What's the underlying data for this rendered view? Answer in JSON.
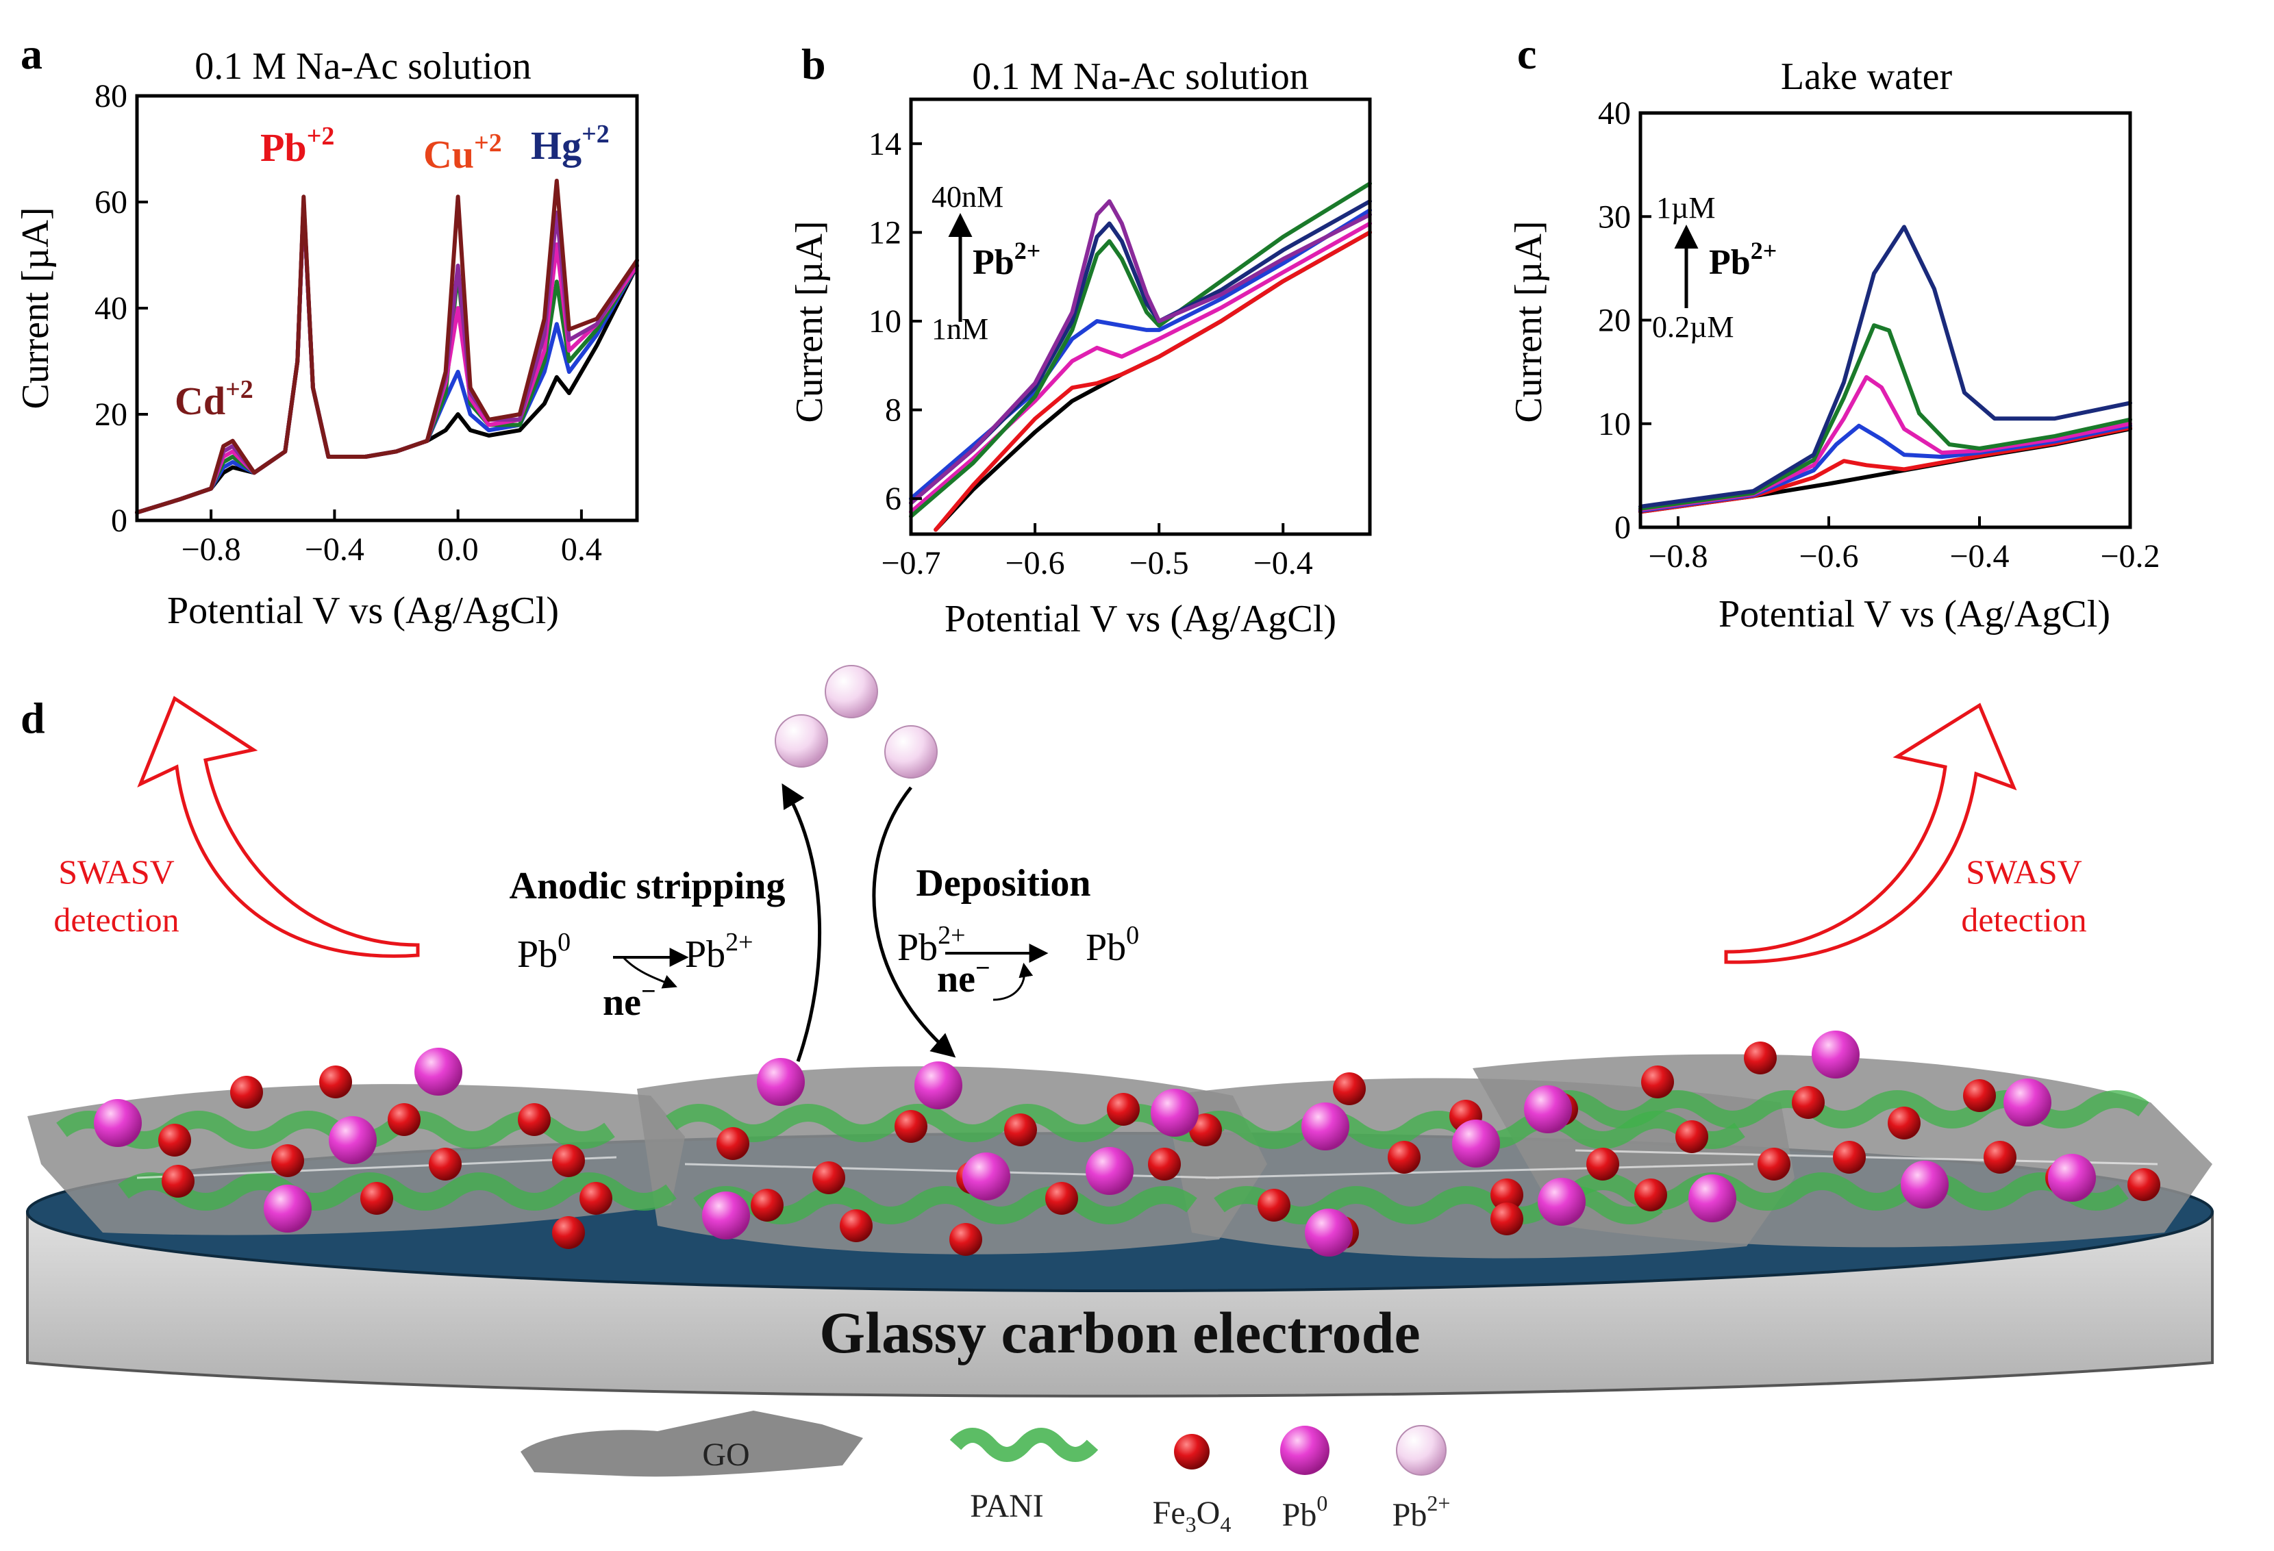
{
  "chart_data": [
    {
      "panel": "a",
      "type": "line",
      "title": "0.1 M Na-Ac solution",
      "xlabel": "Potential V vs (Ag/AgCl)",
      "ylabel": "Current [µA]",
      "xlim": [
        -1.04,
        0.58
      ],
      "ylim": [
        0,
        80
      ],
      "xticks": [
        -0.8,
        -0.4,
        0.0,
        0.4
      ],
      "xtick_labels": [
        "−0.8",
        "−0.4",
        "0.0",
        "0.4"
      ],
      "yticks": [
        0,
        20,
        40,
        60,
        80
      ],
      "ytick_labels": [
        "0",
        "20",
        "40",
        "60",
        "80"
      ],
      "annotations": [
        {
          "ion": "Cd",
          "charge": "+2",
          "color": "#7b1a1a"
        },
        {
          "ion": "Pb",
          "charge": "+2",
          "color": "#e8141a"
        },
        {
          "ion": "Cu",
          "charge": "+2",
          "color": "#e8441a"
        },
        {
          "ion": "Hg",
          "charge": "+2",
          "color": "#1a2a7b"
        }
      ],
      "series": [
        {
          "color": "#000000",
          "x": [
            -1.04,
            -0.9,
            -0.8,
            -0.76,
            -0.73,
            -0.66,
            -0.56,
            -0.52,
            -0.5,
            -0.47,
            -0.42,
            -0.3,
            -0.2,
            -0.1,
            -0.04,
            0.0,
            0.04,
            0.1,
            0.2,
            0.28,
            0.32,
            0.36,
            0.45,
            0.58
          ],
          "y": [
            1.5,
            4,
            6,
            9,
            10,
            9,
            13,
            30,
            60,
            25,
            12,
            12,
            13,
            15,
            17,
            20,
            17,
            16,
            17,
            22,
            27,
            24,
            33,
            48
          ]
        },
        {
          "color": "#1f3fd6",
          "x": [
            -1.04,
            -0.9,
            -0.8,
            -0.76,
            -0.73,
            -0.66,
            -0.56,
            -0.52,
            -0.5,
            -0.47,
            -0.42,
            -0.3,
            -0.2,
            -0.1,
            -0.04,
            0.0,
            0.04,
            0.1,
            0.2,
            0.28,
            0.32,
            0.36,
            0.45,
            0.58
          ],
          "y": [
            1.5,
            4,
            6,
            10,
            11,
            9,
            13,
            30,
            60,
            25,
            12,
            12,
            13,
            15,
            23,
            28,
            20,
            17,
            18,
            28,
            37,
            28,
            35,
            48
          ]
        },
        {
          "color": "#1a7a2a",
          "x": [
            -1.04,
            -0.9,
            -0.8,
            -0.76,
            -0.73,
            -0.66,
            -0.56,
            -0.52,
            -0.5,
            -0.47,
            -0.42,
            -0.3,
            -0.2,
            -0.1,
            -0.04,
            0.0,
            0.04,
            0.1,
            0.2,
            0.28,
            0.32,
            0.36,
            0.45,
            0.58
          ],
          "y": [
            1.5,
            4,
            6,
            11,
            12,
            9,
            13,
            30,
            60,
            25,
            12,
            12,
            13,
            15,
            24,
            47,
            22,
            18,
            18,
            30,
            45,
            30,
            36,
            48
          ]
        },
        {
          "color": "#e01fb0",
          "x": [
            -1.04,
            -0.9,
            -0.8,
            -0.76,
            -0.73,
            -0.66,
            -0.56,
            -0.52,
            -0.5,
            -0.47,
            -0.42,
            -0.3,
            -0.2,
            -0.1,
            -0.04,
            0.0,
            0.04,
            0.1,
            0.2,
            0.28,
            0.32,
            0.36,
            0.45,
            0.58
          ],
          "y": [
            1.5,
            4,
            6,
            12,
            13,
            9,
            13,
            30,
            60,
            25,
            12,
            12,
            13,
            15,
            26,
            40,
            23,
            18,
            19,
            32,
            52,
            32,
            37,
            48
          ]
        },
        {
          "color": "#8a2a9a",
          "x": [
            -1.04,
            -0.9,
            -0.8,
            -0.76,
            -0.73,
            -0.66,
            -0.56,
            -0.52,
            -0.5,
            -0.47,
            -0.42,
            -0.3,
            -0.2,
            -0.1,
            -0.04,
            0.0,
            0.04,
            0.1,
            0.2,
            0.28,
            0.32,
            0.36,
            0.45,
            0.58
          ],
          "y": [
            1.5,
            4,
            6,
            13,
            14,
            9,
            13,
            30,
            60,
            25,
            12,
            12,
            13,
            15,
            27,
            48,
            24,
            19,
            19,
            35,
            58,
            34,
            37,
            49
          ]
        },
        {
          "color": "#7b1a1a",
          "x": [
            -1.04,
            -0.9,
            -0.8,
            -0.76,
            -0.73,
            -0.66,
            -0.56,
            -0.52,
            -0.5,
            -0.47,
            -0.42,
            -0.3,
            -0.2,
            -0.1,
            -0.04,
            0.0,
            0.04,
            0.1,
            0.2,
            0.28,
            0.32,
            0.36,
            0.45,
            0.58
          ],
          "y": [
            1.5,
            4,
            6,
            14,
            15,
            9,
            13,
            30,
            61,
            25,
            12,
            12,
            13,
            15,
            28,
            61,
            25,
            19,
            20,
            38,
            64,
            36,
            38,
            49
          ]
        }
      ]
    },
    {
      "panel": "b",
      "type": "line",
      "title": "0.1 M Na-Ac solution",
      "xlabel": "Potential V vs (Ag/AgCl)",
      "ylabel": "Current [µA]",
      "xlim": [
        -0.7,
        -0.33
      ],
      "ylim": [
        5.2,
        15
      ],
      "xticks": [
        -0.7,
        -0.6,
        -0.5,
        -0.4
      ],
      "xtick_labels": [
        "−0.7",
        "−0.6",
        "−0.5",
        "−0.4"
      ],
      "yticks": [
        6,
        8,
        10,
        12,
        14
      ],
      "ytick_labels": [
        "6",
        "8",
        "10",
        "12",
        "14"
      ],
      "arrow_top": "40nM",
      "arrow_bottom": "1nM",
      "ion_label": "Pb",
      "ion_charge": "2+",
      "series": [
        {
          "color": "#000000",
          "x": [
            -0.68,
            -0.65,
            -0.6,
            -0.57,
            -0.55,
            -0.53,
            -0.5,
            -0.45,
            -0.4,
            -0.33
          ],
          "y": [
            5.3,
            6.2,
            7.5,
            8.2,
            8.5,
            8.8,
            9.2,
            10.0,
            10.9,
            12.0
          ]
        },
        {
          "color": "#e8141a",
          "x": [
            -0.68,
            -0.65,
            -0.6,
            -0.57,
            -0.55,
            -0.53,
            -0.5,
            -0.45,
            -0.4,
            -0.33
          ],
          "y": [
            5.3,
            6.3,
            7.8,
            8.5,
            8.6,
            8.8,
            9.2,
            10.0,
            10.9,
            12.0
          ]
        },
        {
          "color": "#e01fb0",
          "x": [
            -0.7,
            -0.65,
            -0.6,
            -0.57,
            -0.55,
            -0.53,
            -0.5,
            -0.45,
            -0.4,
            -0.33
          ],
          "y": [
            5.7,
            6.9,
            8.2,
            9.1,
            9.4,
            9.2,
            9.6,
            10.3,
            11.1,
            12.2
          ]
        },
        {
          "color": "#1f3fd6",
          "x": [
            -0.7,
            -0.65,
            -0.6,
            -0.57,
            -0.55,
            -0.53,
            -0.51,
            -0.5,
            -0.45,
            -0.4,
            -0.33
          ],
          "y": [
            6.0,
            7.2,
            8.4,
            9.6,
            10.0,
            9.9,
            9.8,
            9.8,
            10.5,
            11.3,
            12.5
          ]
        },
        {
          "color": "#1a7a2a",
          "x": [
            -0.7,
            -0.65,
            -0.6,
            -0.57,
            -0.55,
            -0.54,
            -0.53,
            -0.51,
            -0.5,
            -0.45,
            -0.4,
            -0.33
          ],
          "y": [
            5.6,
            6.8,
            8.3,
            9.8,
            11.5,
            11.8,
            11.4,
            10.2,
            9.9,
            10.9,
            11.9,
            13.1
          ]
        },
        {
          "color": "#1a2a7b",
          "x": [
            -0.7,
            -0.65,
            -0.6,
            -0.57,
            -0.55,
            -0.54,
            -0.53,
            -0.51,
            -0.5,
            -0.45,
            -0.4,
            -0.33
          ],
          "y": [
            5.9,
            7.1,
            8.5,
            10.0,
            11.9,
            12.2,
            11.8,
            10.4,
            10.0,
            10.7,
            11.6,
            12.7
          ]
        },
        {
          "color": "#8a2a9a",
          "x": [
            -0.7,
            -0.65,
            -0.6,
            -0.57,
            -0.55,
            -0.54,
            -0.53,
            -0.51,
            -0.5,
            -0.45,
            -0.4,
            -0.33
          ],
          "y": [
            5.9,
            7.1,
            8.6,
            10.2,
            12.4,
            12.7,
            12.2,
            10.6,
            10.0,
            10.6,
            11.4,
            12.4
          ]
        }
      ]
    },
    {
      "panel": "c",
      "type": "line",
      "title": "Lake water",
      "xlabel": "Potential V vs (Ag/AgCl)",
      "ylabel": "Current [µA]",
      "xlim": [
        -0.85,
        -0.2
      ],
      "ylim": [
        0,
        40
      ],
      "xticks": [
        -0.8,
        -0.6,
        -0.4,
        -0.2
      ],
      "xtick_labels": [
        "−0.8",
        "−0.6",
        "−0.4",
        "−0.2"
      ],
      "yticks": [
        0,
        10,
        20,
        30,
        40
      ],
      "ytick_labels": [
        "0",
        "10",
        "20",
        "30",
        "40"
      ],
      "arrow_top": "1µM",
      "arrow_bottom": "0.2µM",
      "ion_label": "Pb",
      "ion_charge": "2+",
      "series": [
        {
          "color": "#000000",
          "x": [
            -0.85,
            -0.7,
            -0.6,
            -0.5,
            -0.4,
            -0.3,
            -0.2
          ],
          "y": [
            1.5,
            3.0,
            4.2,
            5.5,
            6.8,
            8.0,
            9.5
          ]
        },
        {
          "color": "#e8141a",
          "x": [
            -0.85,
            -0.7,
            -0.62,
            -0.58,
            -0.55,
            -0.5,
            -0.4,
            -0.3,
            -0.2
          ],
          "y": [
            1.5,
            3.0,
            4.8,
            6.4,
            6.0,
            5.6,
            6.9,
            8.1,
            9.6
          ]
        },
        {
          "color": "#1f3fd6",
          "x": [
            -0.85,
            -0.7,
            -0.62,
            -0.59,
            -0.56,
            -0.53,
            -0.5,
            -0.45,
            -0.4,
            -0.3,
            -0.2
          ],
          "y": [
            1.6,
            3.1,
            5.5,
            8.0,
            9.8,
            8.5,
            7.0,
            6.8,
            7.2,
            8.3,
            9.8
          ]
        },
        {
          "color": "#e01fb0",
          "x": [
            -0.85,
            -0.7,
            -0.62,
            -0.58,
            -0.55,
            -0.53,
            -0.5,
            -0.45,
            -0.4,
            -0.3,
            -0.2
          ],
          "y": [
            1.7,
            3.2,
            6.0,
            10.5,
            14.5,
            13.5,
            9.5,
            7.2,
            7.4,
            8.5,
            10.0
          ]
        },
        {
          "color": "#1a7a2a",
          "x": [
            -0.85,
            -0.7,
            -0.62,
            -0.58,
            -0.54,
            -0.52,
            -0.48,
            -0.44,
            -0.4,
            -0.3,
            -0.2
          ],
          "y": [
            1.8,
            3.3,
            6.5,
            12.5,
            19.5,
            19.0,
            11.0,
            8.0,
            7.6,
            8.8,
            10.4
          ]
        },
        {
          "color": "#1a2a7b",
          "x": [
            -0.85,
            -0.7,
            -0.62,
            -0.58,
            -0.54,
            -0.5,
            -0.46,
            -0.42,
            -0.38,
            -0.3,
            -0.2
          ],
          "y": [
            2.0,
            3.5,
            7.0,
            14.0,
            24.5,
            29.0,
            23.0,
            13.0,
            10.5,
            10.5,
            12.0
          ]
        }
      ]
    }
  ],
  "diagram": {
    "panel_label": "d",
    "swasv_left_1": "SWASV",
    "swasv_left_2": "detection",
    "swasv_right_1": "SWASV",
    "swasv_right_2": "detection",
    "stripping_title": "Anodic stripping",
    "stripping_from": "Pb",
    "stripping_from_sup": "0",
    "stripping_to": "Pb",
    "stripping_to_sup": "2+",
    "stripping_electron": "ne",
    "stripping_electron_sup": "−",
    "deposition_title": "Deposition",
    "deposition_from": "Pb",
    "deposition_from_sup": "2+",
    "deposition_to": "Pb",
    "deposition_to_sup": "0",
    "deposition_electron": "ne",
    "deposition_electron_sup": "−",
    "electrode_label": "Glassy carbon electrode",
    "legend": {
      "go": "GO",
      "pani": "PANI",
      "fe3o4_a": "Fe",
      "fe3o4_sub1": "3",
      "fe3o4_b": "O",
      "fe3o4_sub2": "4",
      "pb0": "Pb",
      "pb0_sup": "0",
      "pb2": "Pb",
      "pb2_sup": "2+"
    },
    "colors": {
      "fe3o4": "#e0141a",
      "pb0": "#e63fd2",
      "pb2": "#f4d8f0",
      "pani": "#3fb24a",
      "go": "#8a8a8a",
      "electrode_top": "#1f4a6a",
      "electrode_body": "#cfcfcf",
      "swasv": "#e8141a"
    }
  }
}
